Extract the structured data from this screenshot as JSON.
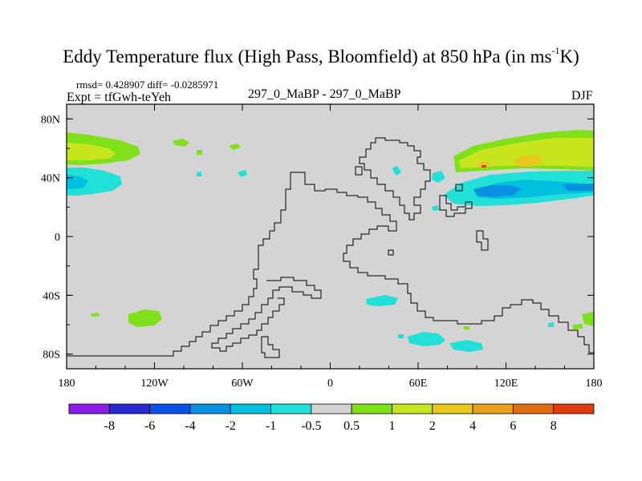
{
  "chart_data": {
    "type": "heatmap",
    "title": "Eddy Temperature flux (High Pass, Bloomfield) at 850 hPa (in ms",
    "title_sup": "-1",
    "title_end": "K)",
    "stats": "rmsd= 0.428907 diff= -0.0285971",
    "expt": "Expt = tfGwh-teYeh",
    "center_label": "297_0_MaBP - 297_0_MaBP",
    "season": "DJF",
    "x_ticks": [
      {
        "value": 0,
        "label": "180"
      },
      {
        "value": 60,
        "label": "120W"
      },
      {
        "value": 120,
        "label": "60W"
      },
      {
        "value": 180,
        "label": "0"
      },
      {
        "value": 240,
        "label": "60E"
      },
      {
        "value": 300,
        "label": "120E"
      },
      {
        "value": 360,
        "label": "180"
      }
    ],
    "y_ticks": [
      {
        "value": 80,
        "label": "80N"
      },
      {
        "value": 40,
        "label": "40N"
      },
      {
        "value": 0,
        "label": "0"
      },
      {
        "value": -40,
        "label": "40S"
      },
      {
        "value": -80,
        "label": "80S"
      }
    ],
    "xlim": [
      0,
      360
    ],
    "ylim": [
      -90,
      90
    ],
    "colorbar": {
      "labels": [
        "-8",
        "-6",
        "-4",
        "-2",
        "-1",
        "-0.5",
        "0.5",
        "1",
        "2",
        "4",
        "6",
        "8"
      ],
      "colors": [
        "#8a1ee6",
        "#2a28d2",
        "#0a50e6",
        "#0a90e0",
        "#00c0e0",
        "#20e0d8",
        "#d4d4d4",
        "#80e01a",
        "#c8e61e",
        "#e8c81a",
        "#e8a01a",
        "#e06e10",
        "#e03c10"
      ]
    },
    "background_color": "#d4d4d4",
    "outline_color": "#000000"
  }
}
